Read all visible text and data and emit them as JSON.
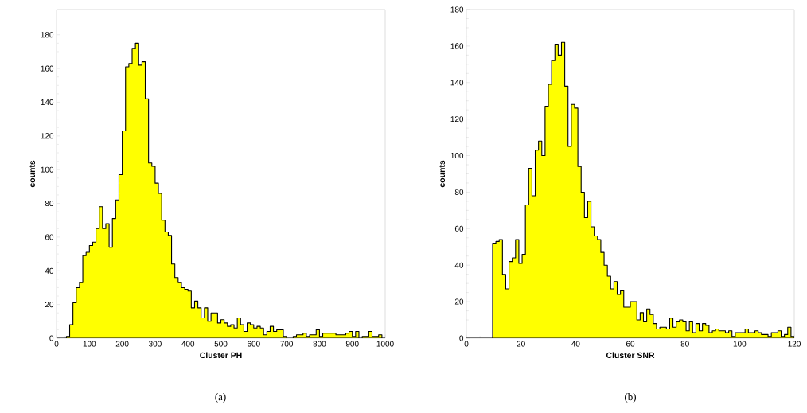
{
  "chart_data": [
    {
      "type": "histogram",
      "xlabel": "Cluster PH",
      "ylabel": "counts",
      "color": "#ffff00",
      "bins": [
        0,
        10,
        20,
        30,
        40,
        50,
        60,
        70,
        80,
        90,
        100,
        110,
        120,
        130,
        140,
        150,
        160,
        170,
        180,
        190,
        200,
        210,
        220,
        230,
        240,
        250,
        260,
        270,
        280,
        290,
        300,
        310,
        320,
        330,
        340,
        350,
        360,
        370,
        380,
        390,
        400,
        410,
        420,
        430,
        440,
        450,
        460,
        470,
        480,
        490,
        500,
        510,
        520,
        530,
        540,
        550,
        560,
        570,
        580,
        590,
        600,
        610,
        620,
        630,
        640,
        650,
        660,
        670,
        680,
        690,
        700,
        710,
        720,
        730,
        740,
        750,
        760,
        770,
        780,
        790,
        800,
        810,
        820,
        830,
        840,
        850,
        860,
        870,
        880,
        890,
        900,
        910,
        920,
        930,
        940,
        950,
        960,
        970,
        980,
        990,
        1000
      ],
      "values": [
        0,
        0,
        0,
        1,
        8,
        21,
        30,
        33,
        49,
        51,
        55,
        57,
        65,
        78,
        65,
        68,
        54,
        71,
        82,
        97,
        123,
        161,
        163,
        172,
        175,
        162,
        164,
        142,
        104,
        102,
        92,
        86,
        70,
        63,
        61,
        44,
        36,
        33,
        30,
        29,
        28,
        18,
        22,
        18,
        12,
        18,
        10,
        15,
        15,
        9,
        11,
        9,
        7,
        8,
        6,
        12,
        8,
        4,
        9,
        8,
        6,
        7,
        6,
        2,
        4,
        7,
        4,
        5,
        5,
        1,
        0,
        0,
        1,
        2,
        2,
        3,
        1,
        2,
        2,
        5,
        1,
        3,
        3,
        3,
        3,
        2,
        2,
        2,
        3,
        4,
        1,
        4,
        0,
        1,
        1,
        4,
        1,
        1,
        2,
        0
      ],
      "xlim": [
        0,
        1000
      ],
      "ylim": [
        0,
        195
      ],
      "xticks": [
        0,
        100,
        200,
        300,
        400,
        500,
        600,
        700,
        800,
        900,
        1000
      ],
      "yticks": [
        0,
        20,
        40,
        60,
        80,
        100,
        120,
        140,
        160,
        180
      ],
      "annotations": [
        "(a)"
      ]
    },
    {
      "type": "histogram",
      "xlabel": "Cluster SNR",
      "ylabel": "counts",
      "color": "#ffff00",
      "bins": [
        0,
        1.2,
        2.4,
        3.6,
        4.8,
        6,
        7.2,
        8.4,
        9.6,
        10.8,
        12,
        13.2,
        14.4,
        15.6,
        16.8,
        18,
        19.2,
        20.4,
        21.6,
        22.8,
        24,
        25.2,
        26.4,
        27.6,
        28.8,
        30,
        31.2,
        32.4,
        33.6,
        34.8,
        36,
        37.2,
        38.4,
        39.6,
        40.8,
        42,
        43.2,
        44.4,
        45.6,
        46.8,
        48,
        49.2,
        50.4,
        51.6,
        52.8,
        54,
        55.2,
        56.4,
        57.6,
        58.8,
        60,
        61.2,
        62.4,
        63.6,
        64.8,
        66,
        67.2,
        68.4,
        69.6,
        70.8,
        72,
        73.2,
        74.4,
        75.6,
        76.8,
        78,
        79.2,
        80.4,
        81.6,
        82.8,
        84,
        85.2,
        86.4,
        87.6,
        88.8,
        90,
        91.2,
        92.4,
        93.6,
        94.8,
        96,
        97.2,
        98.4,
        99.6,
        100.8,
        102,
        103.2,
        104.4,
        105.6,
        106.8,
        108,
        109.2,
        110.4,
        111.6,
        112.8,
        114,
        115.2,
        116.4,
        117.6,
        118.8,
        120
      ],
      "values": [
        0,
        0,
        0,
        0,
        0,
        0,
        0,
        0,
        52,
        53,
        54,
        35,
        27,
        42,
        44,
        54,
        41,
        46,
        73,
        93,
        78,
        103,
        108,
        100,
        127,
        139,
        152,
        161,
        155,
        162,
        138,
        105,
        128,
        126,
        94,
        80,
        66,
        75,
        61,
        56,
        54,
        47,
        40,
        34,
        27,
        31,
        24,
        26,
        17,
        17,
        20,
        20,
        10,
        14,
        9,
        16,
        13,
        8,
        5,
        6,
        6,
        5,
        11,
        6,
        9,
        10,
        9,
        4,
        9,
        3,
        8,
        4,
        8,
        7,
        3,
        4,
        5,
        4,
        4,
        3,
        4,
        1,
        3,
        3,
        3,
        5,
        3,
        3,
        4,
        3,
        2,
        2,
        1,
        3,
        3,
        4,
        1,
        2,
        6,
        1
      ],
      "xlim": [
        0,
        120
      ],
      "ylim": [
        0,
        180
      ],
      "xticks": [
        0,
        20,
        40,
        60,
        80,
        100,
        120
      ],
      "yticks": [
        0,
        20,
        40,
        60,
        80,
        100,
        120,
        140,
        160,
        180
      ],
      "annotations": [
        "(b)"
      ]
    }
  ]
}
